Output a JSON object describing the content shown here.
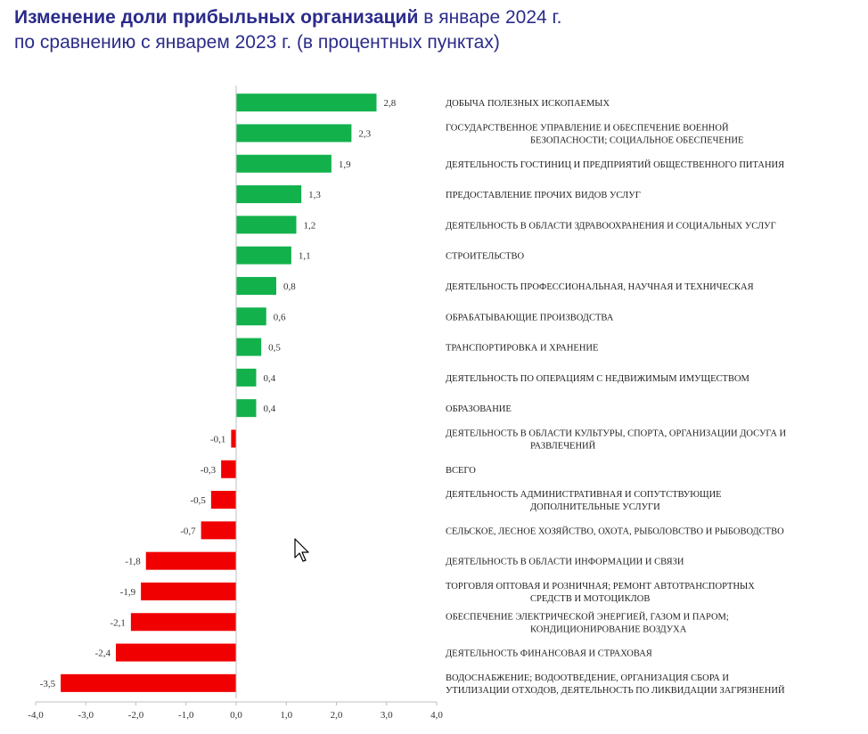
{
  "title": {
    "bold": "Изменение доли прибыльных организаций",
    "rest": " в январе 2024 г.",
    "line2": "по сравнению с январем 2023 г. (в процентных пунктах)"
  },
  "colors": {
    "positive": "#12b14c",
    "negative": "#f00000",
    "title": "#2b2b8a"
  },
  "chart_data": {
    "type": "bar",
    "orientation": "horizontal",
    "title": "Изменение доли прибыльных организаций в январе 2024 г. по сравнению с январем 2023 г. (в процентных пунктах)",
    "xlim": [
      -4.0,
      4.0
    ],
    "ticks": [
      "-4,0",
      "-3,0",
      "-2,0",
      "-1,0",
      "0,0",
      "1,0",
      "2,0",
      "3,0",
      "4,0"
    ],
    "tick_values": [
      -4,
      -3,
      -2,
      -1,
      0,
      1,
      2,
      3,
      4
    ],
    "categories": [
      [
        "ДОБЫЧА ПОЛЕЗНЫХ ИСКОПАЕМЫХ"
      ],
      [
        "ГОСУДАРСТВЕННОЕ УПРАВЛЕНИЕ И ОБЕСПЕЧЕНИЕ ВОЕННОЙ",
        "БЕЗОПАСНОСТИ; СОЦИАЛЬНОЕ ОБЕСПЕЧЕНИЕ"
      ],
      [
        "ДЕЯТЕЛЬНОСТЬ ГОСТИНИЦ И ПРЕДПРИЯТИЙ ОБЩЕСТВЕННОГО ПИТАНИЯ"
      ],
      [
        "ПРЕДОСТАВЛЕНИЕ ПРОЧИХ ВИДОВ УСЛУГ"
      ],
      [
        "ДЕЯТЕЛЬНОСТЬ В ОБЛАСТИ ЗДРАВООХРАНЕНИЯ И СОЦИАЛЬНЫХ УСЛУГ"
      ],
      [
        "СТРОИТЕЛЬСТВО"
      ],
      [
        "ДЕЯТЕЛЬНОСТЬ ПРОФЕССИОНАЛЬНАЯ, НАУЧНАЯ И ТЕХНИЧЕСКАЯ"
      ],
      [
        "ОБРАБАТЫВАЮЩИЕ ПРОИЗВОДСТВА"
      ],
      [
        "ТРАНСПОРТИРОВКА И ХРАНЕНИЕ"
      ],
      [
        "ДЕЯТЕЛЬНОСТЬ ПО ОПЕРАЦИЯМ С НЕДВИЖИМЫМ ИМУЩЕСТВОМ"
      ],
      [
        "ОБРАЗОВАНИЕ"
      ],
      [
        "ДЕЯТЕЛЬНОСТЬ В ОБЛАСТИ КУЛЬТУРЫ, СПОРТА, ОРГАНИЗАЦИИ ДОСУГА И",
        "РАЗВЛЕЧЕНИЙ"
      ],
      [
        "ВСЕГО"
      ],
      [
        "ДЕЯТЕЛЬНОСТЬ АДМИНИСТРАТИВНАЯ И СОПУТСТВУЮЩИЕ",
        "ДОПОЛНИТЕЛЬНЫЕ УСЛУГИ"
      ],
      [
        "СЕЛЬСКОЕ, ЛЕСНОЕ ХОЗЯЙСТВО, ОХОТА, РЫБОЛОВСТВО И РЫБОВОДСТВО"
      ],
      [
        "ДЕЯТЕЛЬНОСТЬ В ОБЛАСТИ ИНФОРМАЦИИ И СВЯЗИ"
      ],
      [
        "ТОРГОВЛЯ ОПТОВАЯ И РОЗНИЧНАЯ; РЕМОНТ АВТОТРАНСПОРТНЫХ",
        "СРЕДСТВ И МОТОЦИКЛОВ"
      ],
      [
        "ОБЕСПЕЧЕНИЕ ЭЛЕКТРИЧЕСКОЙ ЭНЕРГИЕЙ, ГАЗОМ И ПАРОМ;",
        "КОНДИЦИОНИРОВАНИЕ ВОЗДУХА"
      ],
      [
        "ДЕЯТЕЛЬНОСТЬ ФИНАНСОВАЯ И СТРАХОВАЯ"
      ],
      [
        "ВОДОСНАБЖЕНИЕ; ВОДООТВЕДЕНИЕ, ОРГАНИЗАЦИЯ СБОРА И",
        "УТИЛИЗАЦИИ ОТХОДОВ, ДЕЯТЕЛЬНОСТЬ ПО ЛИКВИДАЦИИ ЗАГРЯЗНЕНИЙ"
      ]
    ],
    "values": [
      2.8,
      2.3,
      1.9,
      1.3,
      1.2,
      1.1,
      0.8,
      0.6,
      0.5,
      0.4,
      0.4,
      -0.1,
      -0.3,
      -0.5,
      -0.7,
      -1.8,
      -1.9,
      -2.1,
      -2.4,
      -3.5
    ],
    "value_labels": [
      "2,8",
      "2,3",
      "1,9",
      "1,3",
      "1,2",
      "1,1",
      "0,8",
      "0,6",
      "0,5",
      "0,4",
      "0,4",
      "-0,1",
      "-0,3",
      "-0,5",
      "-0,7",
      "-1,8",
      "-1,9",
      "-2,1",
      "-2,4",
      "-3,5"
    ]
  }
}
